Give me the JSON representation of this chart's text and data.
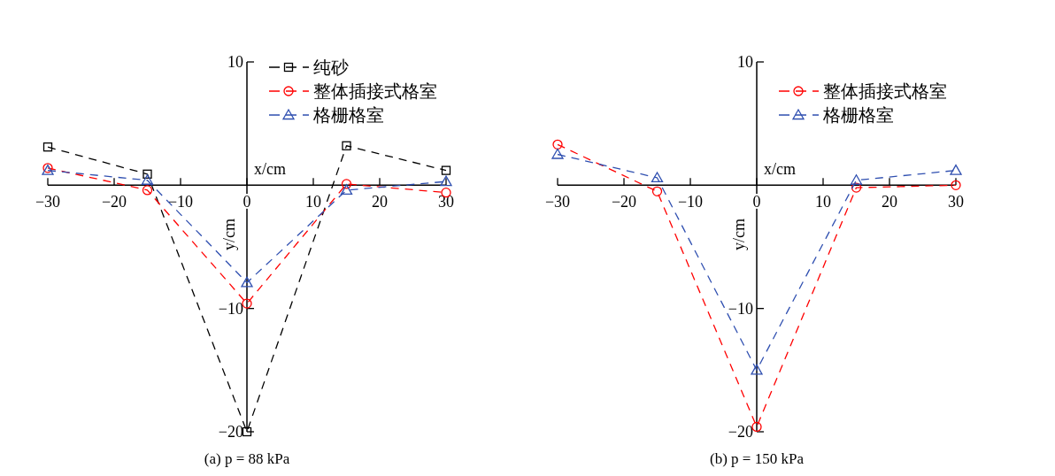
{
  "chart_data": [
    {
      "type": "line",
      "title": "(a) p = 88 kPa",
      "xlabel": "x/cm",
      "ylabel": "y/cm",
      "x": [
        -30,
        -15,
        0,
        15,
        30
      ],
      "xlim": [
        -30,
        30
      ],
      "ylim": [
        -20,
        10
      ],
      "xticks": [
        -30,
        -20,
        -10,
        0,
        10,
        20,
        30
      ],
      "yticks": [
        -20,
        -10,
        10
      ],
      "legend": "top right",
      "line_style": "dashed",
      "series": [
        {
          "name": "纯砂",
          "color": "#000000",
          "marker": "square",
          "values": [
            3.1,
            0.9,
            -20,
            3.2,
            1.2
          ]
        },
        {
          "name": "整体插接式格室",
          "color": "#ff0000",
          "marker": "circle",
          "values": [
            1.4,
            -0.4,
            -9.6,
            0.1,
            -0.6
          ]
        },
        {
          "name": "格栅格室",
          "color": "#2f4fb0",
          "marker": "triangle",
          "values": [
            1.2,
            0.4,
            -7.9,
            -0.4,
            0.3
          ]
        }
      ]
    },
    {
      "type": "line",
      "title": "(b) p = 150 kPa",
      "xlabel": "x/cm",
      "ylabel": "y/cm",
      "x": [
        -30,
        -15,
        0,
        15,
        30
      ],
      "xlim": [
        -30,
        30
      ],
      "ylim": [
        -20,
        10
      ],
      "xticks": [
        -30,
        -20,
        -10,
        0,
        10,
        20,
        30
      ],
      "yticks": [
        -20,
        -10,
        10
      ],
      "legend": "top right",
      "line_style": "dashed",
      "series": [
        {
          "name": "整体插接式格室",
          "color": "#ff0000",
          "marker": "circle",
          "values": [
            3.3,
            -0.5,
            -19.6,
            -0.2,
            0
          ]
        },
        {
          "name": "格栅格室",
          "color": "#2f4fb0",
          "marker": "triangle",
          "values": [
            2.5,
            0.6,
            -15,
            0.4,
            1.2
          ]
        }
      ]
    }
  ]
}
